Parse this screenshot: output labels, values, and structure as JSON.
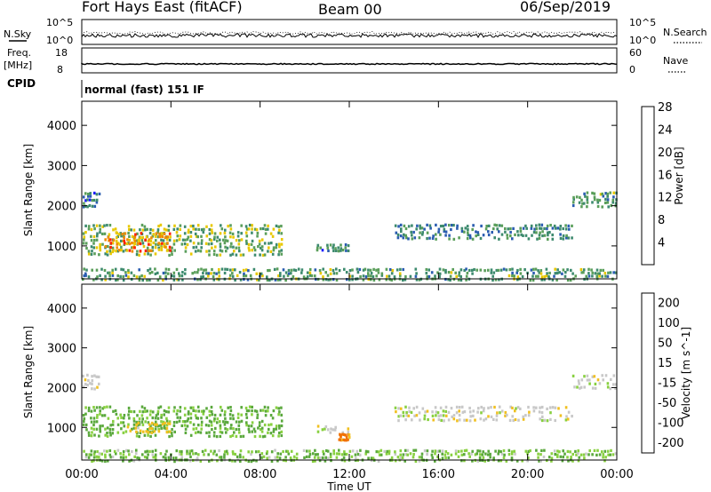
{
  "header": {
    "station": "Fort Hays East (fitACF)",
    "beam": "Beam 00",
    "date": "06/Sep/2019"
  },
  "panels": {
    "noise": {
      "left_label": "N.Sky",
      "left_ticks": [
        "10^5",
        "10^0"
      ],
      "right_ticks": [
        "10^5",
        "10^0"
      ],
      "right_label": "N.Search"
    },
    "freq": {
      "left_label_1": "Freq.",
      "left_label_2": "[MHz]",
      "left_ticks": [
        "18",
        "8"
      ],
      "right_ticks": [
        "60",
        "0"
      ],
      "right_label": "Nave"
    },
    "cpid": {
      "label": "CPID",
      "value": "normal (fast) 151 IF"
    }
  },
  "chart_data": [
    {
      "type": "heatmap",
      "parameter": "Power",
      "ylabel": "Slant Range [km]",
      "xlabel": "Time UT",
      "x_ticks": [
        "00:00",
        "04:00",
        "08:00",
        "12:00",
        "16:00",
        "20:00",
        "00:00"
      ],
      "y_ticks": [
        1000,
        2000,
        3000,
        4000
      ],
      "xlim_hours": [
        0,
        24
      ],
      "ylim_km": [
        180,
        4600
      ],
      "colorbar": {
        "label": "Power [dB]",
        "ticks": [
          "4",
          "8",
          "12",
          "16",
          "20",
          "24",
          "28"
        ],
        "colors": [
          "#1a1aff",
          "#2a5cb0",
          "#3d8a6e",
          "#5a9e5a",
          "#e8c800",
          "#f08a00",
          "#ff2000"
        ]
      },
      "echo_regions": [
        {
          "t0": 0.0,
          "t1": 9.0,
          "r0": 800,
          "r1": 1600,
          "level": 14
        },
        {
          "t0": 1.0,
          "t1": 4.0,
          "r0": 900,
          "r1": 1400,
          "level": 22
        },
        {
          "t0": 0.0,
          "t1": 0.8,
          "r0": 2000,
          "r1": 2400,
          "level": 8
        },
        {
          "t0": 10.5,
          "t1": 12.0,
          "r0": 900,
          "r1": 1100,
          "level": 8
        },
        {
          "t0": 14.0,
          "t1": 22.0,
          "r0": 1200,
          "r1": 1600,
          "level": 10
        },
        {
          "t0": 22.0,
          "t1": 24.0,
          "r0": 2000,
          "r1": 2400,
          "level": 12
        },
        {
          "t0": 0.0,
          "t1": 24.0,
          "r0": 180,
          "r1": 500,
          "level": 12
        }
      ]
    },
    {
      "type": "heatmap",
      "parameter": "Velocity",
      "ylabel": "Slant Range [km]",
      "xlabel": "Time UT",
      "x_ticks": [
        "00:00",
        "04:00",
        "08:00",
        "12:00",
        "16:00",
        "20:00",
        "00:00"
      ],
      "y_ticks": [
        1000,
        2000,
        3000,
        4000
      ],
      "xlim_hours": [
        0,
        24
      ],
      "ylim_km": [
        180,
        4600
      ],
      "colorbar": {
        "label": "Velocity [m s^-1]",
        "ticks": [
          "200",
          "100",
          "50",
          "15",
          "-15",
          "-50",
          "-100",
          "-200"
        ],
        "colors": [
          "#1a30c0",
          "#3c7a4a",
          "#5aa83c",
          "#88d040",
          "#c8c8c8",
          "#f0c020",
          "#f07000",
          "#ff2000"
        ]
      },
      "echo_regions": [
        {
          "t0": 0.0,
          "t1": 9.0,
          "r0": 800,
          "r1": 1600,
          "v": 40
        },
        {
          "t0": 2.0,
          "t1": 4.0,
          "r0": 900,
          "r1": 1200,
          "v": -30
        },
        {
          "t0": 0.0,
          "t1": 0.8,
          "r0": 2000,
          "r1": 2400,
          "v": 0
        },
        {
          "t0": 10.5,
          "t1": 12.0,
          "r0": 900,
          "r1": 1100,
          "v": 0
        },
        {
          "t0": 11.5,
          "t1": 12.0,
          "r0": 700,
          "r1": 900,
          "v": -60
        },
        {
          "t0": 14.0,
          "t1": 22.0,
          "r0": 1200,
          "r1": 1600,
          "v": 0
        },
        {
          "t0": 22.0,
          "t1": 24.0,
          "r0": 2000,
          "r1": 2400,
          "v": 0
        },
        {
          "t0": 0.0,
          "t1": 24.0,
          "r0": 180,
          "r1": 500,
          "v": 30
        }
      ]
    }
  ]
}
